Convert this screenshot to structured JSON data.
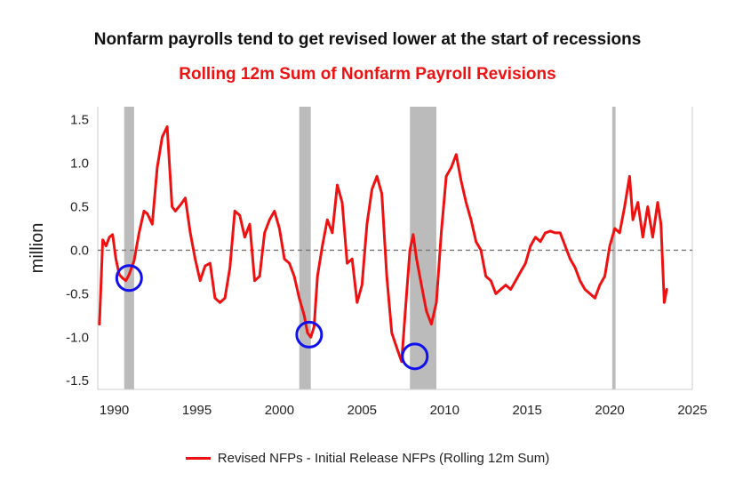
{
  "title": "Nonfarm payrolls tend to get revised lower at the start of recessions",
  "subtitle": "Rolling 12m Sum of Nonfarm Payroll Revisions",
  "colors": {
    "series": "#ee1111",
    "recession": "#bbbbbb",
    "circle": "#1111ee",
    "title": "#111111",
    "subtitle": "#ee1111"
  },
  "chart_data": {
    "type": "line",
    "ylabel": "million",
    "xlabel": "",
    "xlim": [
      1989.0,
      2025.0
    ],
    "ylim": [
      -1.6,
      1.65
    ],
    "xticks": [
      1990,
      1995,
      2000,
      2005,
      2010,
      2015,
      2020,
      2025
    ],
    "yticks": [
      1.5,
      1.0,
      0.5,
      0.0,
      -0.5,
      -1.0,
      -1.5
    ],
    "ytick_labels": [
      "1.5",
      "1.0",
      "0.5",
      "0.0",
      "-0.5",
      "-1.0",
      "-1.5"
    ],
    "zero_line": "dashed",
    "recessions": [
      [
        1990.6,
        1991.2
      ],
      [
        2001.2,
        2001.9
      ],
      [
        2007.9,
        2009.5
      ],
      [
        2020.15,
        2020.35
      ]
    ],
    "highlight_circles": [
      [
        1990.9,
        -0.32
      ],
      [
        2001.8,
        -0.97
      ],
      [
        2008.2,
        -1.22
      ]
    ],
    "legend_position": "bottom",
    "series": [
      {
        "name": "Revised NFPs - Initial Release NFPs (Rolling 12m Sum)",
        "x": [
          1989.1,
          1989.3,
          1989.5,
          1989.7,
          1989.9,
          1990.1,
          1990.3,
          1990.5,
          1990.7,
          1990.9,
          1991.2,
          1991.5,
          1991.8,
          1992.0,
          1992.3,
          1992.6,
          1992.9,
          1993.2,
          1993.5,
          1993.7,
          1994.0,
          1994.3,
          1994.6,
          1994.9,
          1995.2,
          1995.5,
          1995.8,
          1996.1,
          1996.4,
          1996.7,
          1997.0,
          1997.3,
          1997.6,
          1997.9,
          1998.2,
          1998.5,
          1998.8,
          1999.1,
          1999.4,
          1999.7,
          2000.0,
          2000.3,
          2000.6,
          2000.9,
          2001.2,
          2001.5,
          2001.7,
          2001.9,
          2002.1,
          2002.3,
          2002.6,
          2002.9,
          2003.2,
          2003.5,
          2003.8,
          2004.1,
          2004.4,
          2004.7,
          2005.0,
          2005.3,
          2005.6,
          2005.9,
          2006.2,
          2006.5,
          2006.8,
          2007.1,
          2007.4,
          2007.7,
          2007.9,
          2008.1,
          2008.3,
          2008.6,
          2008.9,
          2009.2,
          2009.5,
          2009.8,
          2010.1,
          2010.4,
          2010.7,
          2011.0,
          2011.3,
          2011.6,
          2011.9,
          2012.2,
          2012.5,
          2012.8,
          2013.1,
          2013.4,
          2013.7,
          2014.0,
          2014.3,
          2014.6,
          2014.9,
          2015.2,
          2015.5,
          2015.8,
          2016.1,
          2016.4,
          2016.7,
          2017.0,
          2017.3,
          2017.6,
          2017.9,
          2018.2,
          2018.5,
          2018.8,
          2019.1,
          2019.4,
          2019.7,
          2020.0,
          2020.3,
          2020.6,
          2020.9,
          2021.2,
          2021.4,
          2021.7,
          2022.0,
          2022.3,
          2022.6,
          2022.9,
          2023.1,
          2023.3,
          2023.45
        ],
        "values": [
          -0.85,
          0.12,
          0.05,
          0.15,
          0.18,
          -0.1,
          -0.28,
          -0.32,
          -0.35,
          -0.28,
          -0.12,
          0.2,
          0.45,
          0.42,
          0.3,
          0.95,
          1.3,
          1.42,
          0.5,
          0.45,
          0.52,
          0.6,
          0.2,
          -0.1,
          -0.35,
          -0.18,
          -0.15,
          -0.55,
          -0.6,
          -0.55,
          -0.2,
          0.45,
          0.4,
          0.15,
          0.3,
          -0.35,
          -0.3,
          0.2,
          0.35,
          0.45,
          0.25,
          -0.1,
          -0.15,
          -0.3,
          -0.55,
          -0.75,
          -0.95,
          -1.0,
          -0.88,
          -0.3,
          0.05,
          0.35,
          0.2,
          0.75,
          0.55,
          -0.15,
          -0.1,
          -0.6,
          -0.4,
          0.3,
          0.7,
          0.85,
          0.65,
          -0.3,
          -0.95,
          -1.12,
          -1.28,
          -0.5,
          0.0,
          0.18,
          -0.1,
          -0.4,
          -0.7,
          -0.85,
          -0.6,
          0.2,
          0.85,
          0.95,
          1.1,
          0.8,
          0.55,
          0.35,
          0.1,
          0.0,
          -0.3,
          -0.35,
          -0.5,
          -0.45,
          -0.4,
          -0.45,
          -0.35,
          -0.25,
          -0.15,
          0.05,
          0.15,
          0.1,
          0.2,
          0.22,
          0.2,
          0.2,
          0.05,
          -0.1,
          -0.2,
          -0.35,
          -0.45,
          -0.5,
          -0.55,
          -0.4,
          -0.3,
          0.05,
          0.25,
          0.2,
          0.5,
          0.85,
          0.35,
          0.55,
          0.15,
          0.5,
          0.15,
          0.55,
          0.3,
          -0.6,
          -0.45
        ]
      }
    ]
  }
}
